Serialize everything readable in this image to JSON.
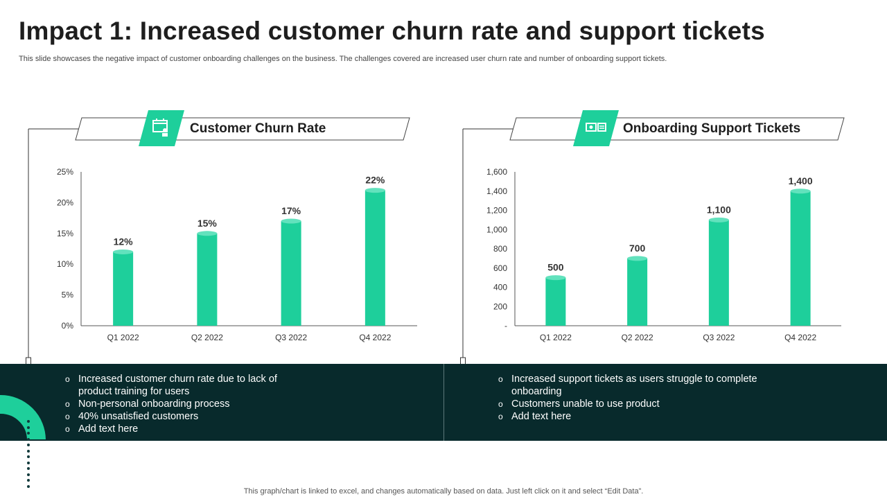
{
  "title": "Impact 1: Increased customer churn rate and support tickets",
  "subtitle": "This slide showcases the negative impact of customer onboarding challenges on the business. The challenges covered are increased user churn rate and number of onboarding support tickets.",
  "colors": {
    "accent": "#1ecf9b",
    "dark_band": "#082a2c",
    "bar": "#1ecf9b",
    "bar_top": "#62e2bd"
  },
  "left_panel": {
    "header": "Customer Churn Rate",
    "icon": "calendar-person-icon",
    "bullets": [
      "Increased customer churn rate due to lack of product training for users",
      "Non-personal onboarding process",
      "40% unsatisfied customers",
      "Add text here"
    ]
  },
  "right_panel": {
    "header": "Onboarding Support Tickets",
    "icon": "ticket-cash-icon",
    "bullets": [
      "Increased support tickets as users struggle to complete onboarding",
      "Customers unable to use product",
      "Add text here"
    ]
  },
  "chart_data": [
    {
      "type": "bar",
      "title": "Customer Churn Rate",
      "categories": [
        "Q1 2022",
        "Q2 2022",
        "Q3 2022",
        "Q4 2022"
      ],
      "values": [
        12,
        15,
        17,
        22
      ],
      "data_labels": [
        "12%",
        "15%",
        "17%",
        "22%"
      ],
      "yticks": [
        "0%",
        "5%",
        "10%",
        "15%",
        "20%",
        "25%"
      ],
      "ylim": [
        0,
        25
      ],
      "grid": false,
      "legend": "none"
    },
    {
      "type": "bar",
      "title": "Onboarding Support Tickets",
      "categories": [
        "Q1 2022",
        "Q2 2022",
        "Q3 2022",
        "Q4 2022"
      ],
      "values": [
        500,
        700,
        1100,
        1400
      ],
      "data_labels": [
        "500",
        "700",
        "1,100",
        "1,400"
      ],
      "yticks": [
        "-",
        "200",
        "400",
        "600",
        "800",
        "1,000",
        "1,200",
        "1,400",
        "1,600"
      ],
      "ylim": [
        0,
        1600
      ],
      "grid": false,
      "legend": "none"
    }
  ],
  "footer": "This graph/chart is linked to excel,  and changes automatically based on data. Just left click on it and select “Edit Data”."
}
